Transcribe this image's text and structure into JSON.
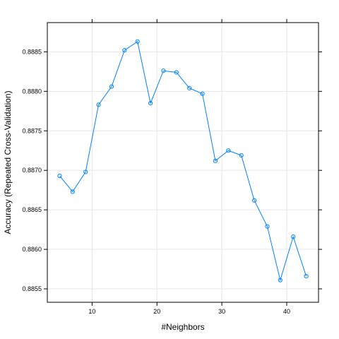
{
  "chart_data": {
    "type": "line",
    "title": "",
    "xlabel": "#Neighbors",
    "ylabel": "Accuracy (Repeated Cross-Validation)",
    "xlim": [
      3.1,
      44.9
    ],
    "ylim": [
      0.88533,
      0.88887
    ],
    "x_ticks": [
      10,
      20,
      30,
      40
    ],
    "x_tick_labels": [
      "10",
      "20",
      "30",
      "40"
    ],
    "y_ticks": [
      0.8855,
      0.886,
      0.8865,
      0.887,
      0.8875,
      0.888,
      0.8885
    ],
    "y_tick_labels": [
      "0.8855",
      "0.8860",
      "0.8865",
      "0.8870",
      "0.8875",
      "0.8880",
      "0.8885"
    ],
    "grid": true,
    "series": [
      {
        "name": "Accuracy",
        "color": "#0080ff",
        "x": [
          5,
          7,
          9,
          11,
          13,
          15,
          17,
          19,
          21,
          23,
          25,
          27,
          29,
          31,
          33,
          35,
          37,
          39,
          41,
          43
        ],
        "values": [
          0.88693,
          0.88673,
          0.88698,
          0.88783,
          0.88806,
          0.88852,
          0.88863,
          0.88785,
          0.88826,
          0.88824,
          0.88804,
          0.88797,
          0.88712,
          0.88725,
          0.88719,
          0.88662,
          0.88629,
          0.88561,
          0.88616,
          0.88566
        ]
      }
    ]
  }
}
